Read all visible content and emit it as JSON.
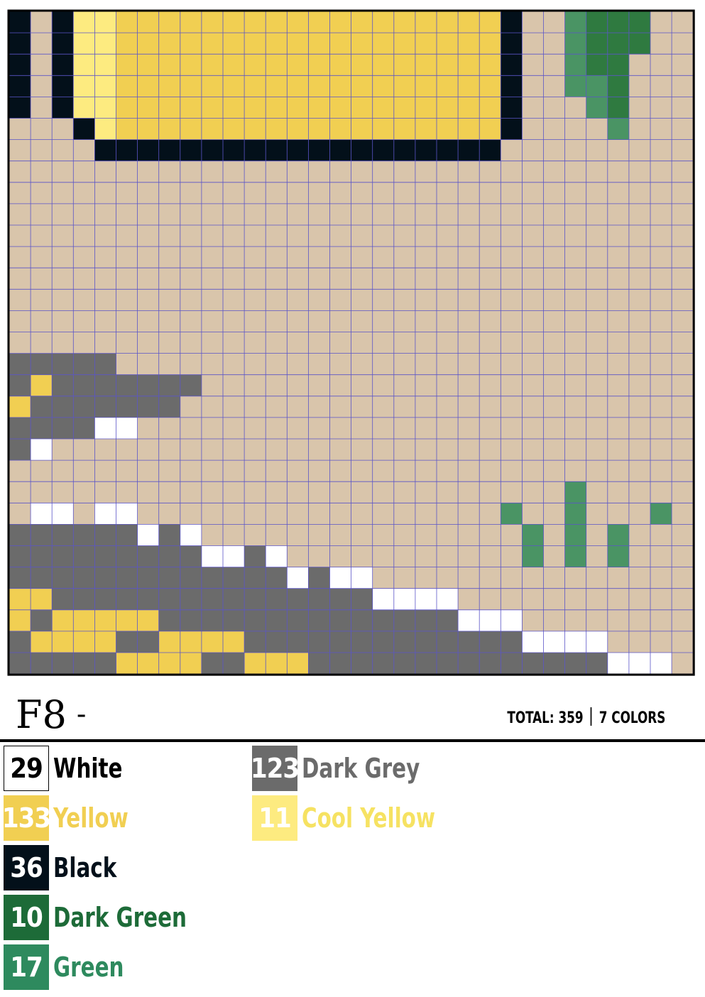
{
  "sheet": {
    "code": "F8",
    "dash": "-",
    "total_label": "TOTAL: 359",
    "colors_label": "7 COLORS"
  },
  "palette": {
    "B": "#d9c5ab",
    "W": "#ffffff",
    "Y": "#f1cf52",
    "K": "#03101a",
    "G": "#6b6b6b",
    "D": "#2f7a40",
    "N": "#4a9464",
    "C": "#fdeb80"
  },
  "grid_rows": [
    "KBKCCYYYYYYYYYYYYYYYYYYKBBNDDDBB",
    "KBKCCYYYYYYYYYYYYYYYYYYKBBNDDDBB",
    "KBKCCYYYYYYYYYYYYYYYYYYKBBNDDBBB",
    "KBKCCYYYYYYYYYYYYYYYYYYKBBNNDBBB",
    "KBKCCYYYYYYYYYYYYYYYYYYKBBBNDBBB",
    "BBBKCYYYYYYYYYYYYYYYYYYKBBBBNBBB",
    "BBBBKKKKKKKKKKKKKKKKKKKBBBBBBBBB",
    "BBBBBBBBBBBBBBBBBBBBBBBBBBBBBBBB",
    "BBBBBBBBBBBBBBBBBBBBBBBBBBBBBBBB",
    "BBBBBBBBBBBBBBBBBBBBBBBBBBBBBBBB",
    "BBBBBBBBBBBBBBBBBBBBBBBBBBBBBBBB",
    "BBBBBBBBBBBBBBBBBBBBBBBBBBBBBBBB",
    "BBBBBBBBBBBBBBBBBBBBBBBBBBBBBBBB",
    "BBBBBBBBBBBBBBBBBBBBBBBBBBBBBBBB",
    "BBBBBBBBBBBBBBBBBBBBBBBBBBBBBBBB",
    "BBBBBBBBBBBBBBBBBBBBBBBBBBBBBBBB",
    "GGGGGBBBBBBBBBBBBBBBBBBBBBBBBBBB",
    "GYGGGGGGGBBBBBBBBBBBBBBBBBBBBBBB",
    "YGGGGGGGBBBBBBBBBBBBBBBBBBBBBBBB",
    "GGGGWWBBBBBBBBBBBBBBBBBBBBBBBBBB",
    "GWBBBBBBBBBBBBBBBBBBBBBBBBBBBBBB",
    "BBBBBBBBBBBBBBBBBBBBBBBBBBBBBBBB",
    "BBBBBBBBBBBBBBBBBBBBBBBBBBNBBBBB",
    "BWWBWWBBBBBBBBBBBBBBBBBNBBNBBBNB",
    "GGGGGGWGWBBBBBBBBBBBBBBBNBNBNBBB",
    "GGGGGGGGGWWGWBBBBBBBBBBBNBNBNBBB",
    "GGGGGGGGGGGGGWGWWBBBBBBBBBBBBBBB",
    "YYGGGGGGGGGGGGGGGWWWWBBBBBBBBBBB",
    "YGYYYYYGGGGGGGGGGGGGGWWWBBBBBBBB",
    "GYYYYGGYYYYGGGGGGGGGGGGGWWWWBBBB",
    "GGGGGYYYYGGYYYGGGGGGGGGGGGGGWWWB"
  ],
  "legend": [
    {
      "count": "29",
      "name": "White",
      "color": "#ffffff",
      "text_color": "#000000"
    },
    {
      "count": "133",
      "name": "Yellow",
      "color": "#f1cf52",
      "text_color": "#f1cf52"
    },
    {
      "count": "36",
      "name": "Black",
      "color": "#03101a",
      "text_color": "#03101a"
    },
    {
      "count": "10",
      "name": "Dark Green",
      "color": "#1d6b38",
      "text_color": "#1d6b38"
    },
    {
      "count": "17",
      "name": "Green",
      "color": "#2e8a5e",
      "text_color": "#2e8a5e"
    },
    {
      "count": "123",
      "name": "Dark Grey",
      "color": "#6b6b6b",
      "text_color": "#6b6b6b"
    },
    {
      "count": "11",
      "name": "Cool Yellow",
      "color": "#fdeb80",
      "text_color": "#f6e262"
    }
  ]
}
